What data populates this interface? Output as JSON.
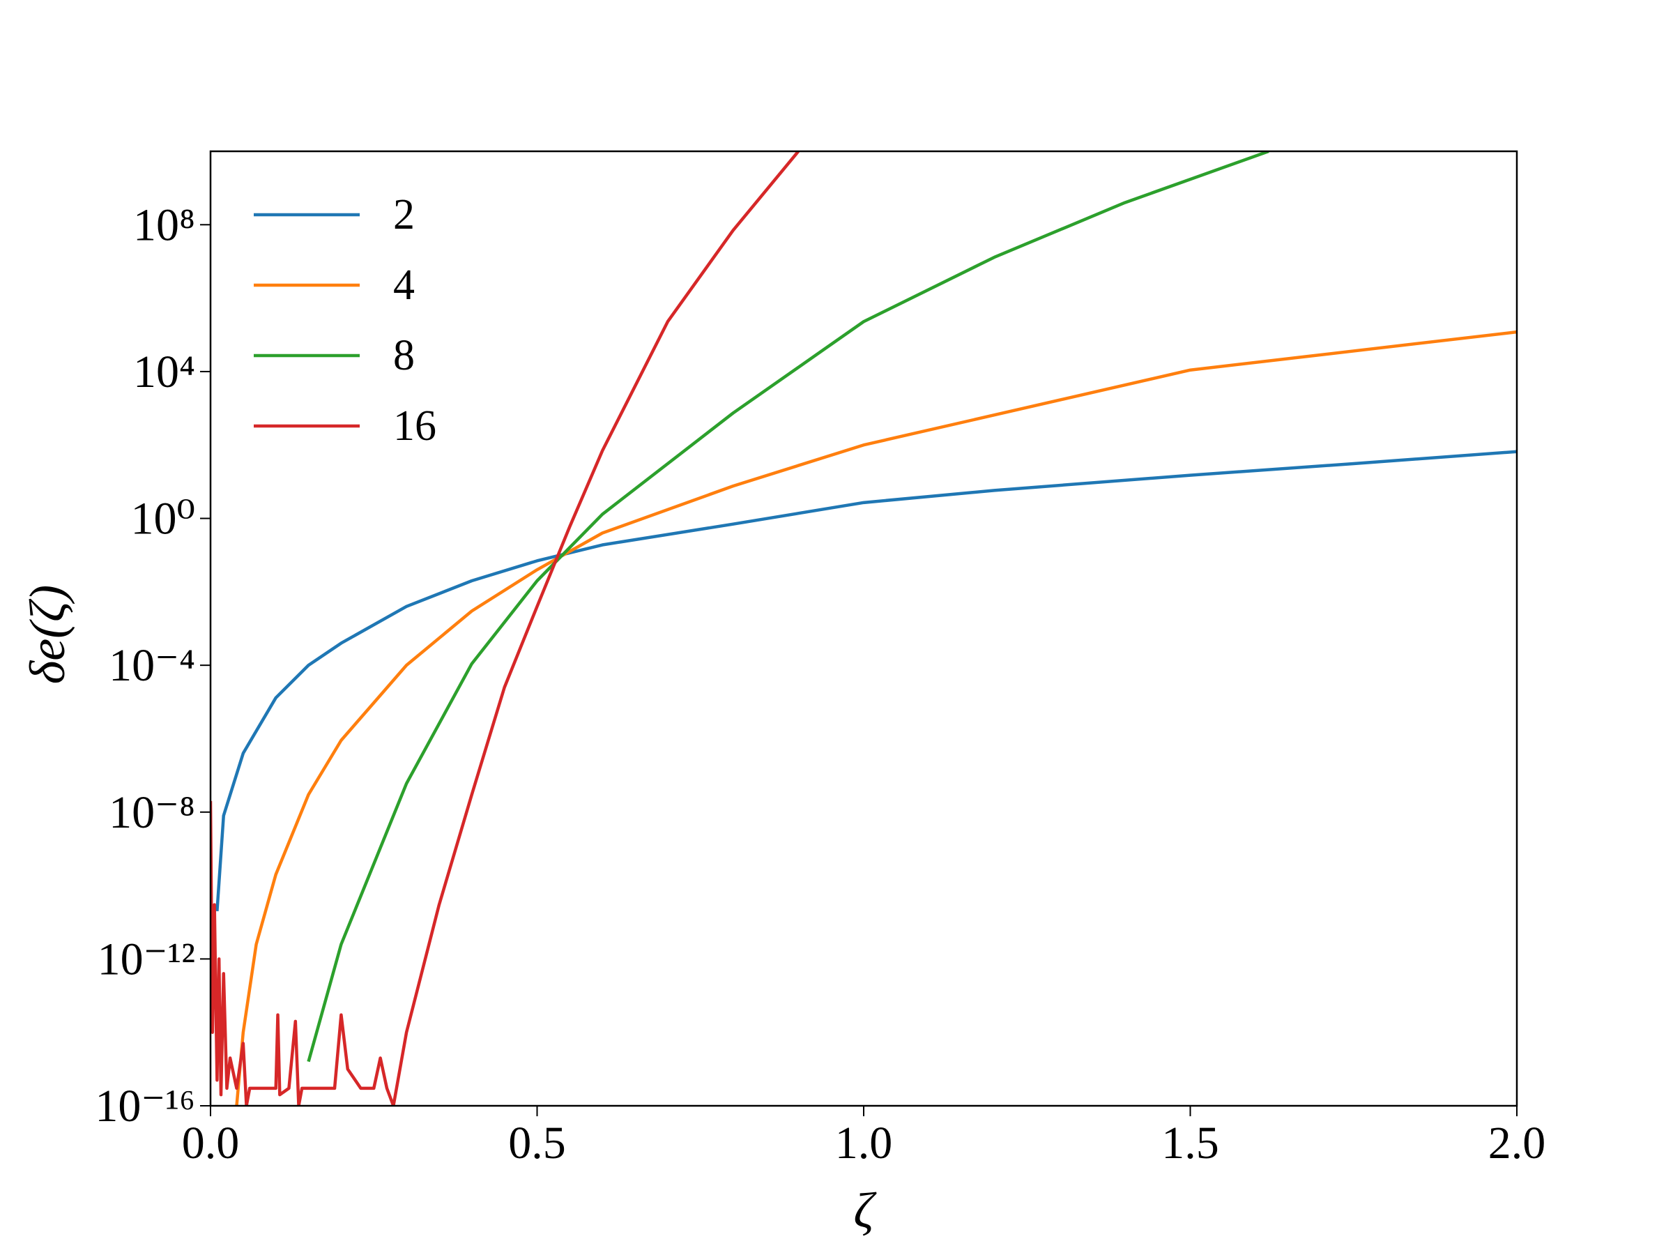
{
  "chart_data": {
    "type": "line",
    "x_label": "ζ",
    "y_label": "δe(ζ)",
    "log_y": true,
    "grid": false,
    "legend": "upper left",
    "xlim": [
      0,
      2
    ],
    "xticks": [
      {
        "value": 0,
        "label": "0.0"
      },
      0.5,
      {
        "value": 1,
        "label": "1.0"
      },
      1.5,
      {
        "value": 2,
        "label": "2.0"
      }
    ],
    "ylim": [
      1e-16,
      10000000000.0
    ],
    "yticks": [
      {
        "value": 1e-16,
        "label": "10⁻¹⁶"
      },
      {
        "value": 1e-12,
        "label": "10⁻¹²"
      },
      {
        "value": 1e-08,
        "label": "10⁻⁸"
      },
      {
        "value": 0.0001,
        "label": "10⁻⁴"
      },
      {
        "value": 1,
        "label": "10⁰"
      },
      {
        "value": 10000,
        "label": "10⁴"
      },
      {
        "value": 100000000,
        "label": "10⁸"
      }
    ],
    "series": [
      {
        "name": "2",
        "color": "#1f77b4",
        "x": [
          0.01,
          0.02,
          0.05,
          0.1,
          0.15,
          0.2,
          0.3,
          0.4,
          0.5,
          0.6,
          0.8,
          1.0,
          1.2,
          1.5,
          1.75,
          2.0
        ],
        "values": [
          2e-11,
          8e-09,
          4e-07,
          1.3e-05,
          0.0001,
          0.0004,
          0.004,
          0.02,
          0.07,
          0.19,
          0.7,
          2.7,
          5.8,
          15,
          31,
          66
        ]
      },
      {
        "name": "4",
        "color": "#ff7f0e",
        "x": [
          0.04,
          0.05,
          0.07,
          0.1,
          0.15,
          0.2,
          0.3,
          0.4,
          0.5,
          0.6,
          0.8,
          1.0,
          1.5,
          2.0
        ],
        "values": [
          1e-16,
          1e-14,
          2.5e-12,
          2e-10,
          3e-08,
          9e-07,
          0.0001,
          0.003,
          0.04,
          0.4,
          7.6,
          100,
          11000,
          120000
        ]
      },
      {
        "name": "8",
        "color": "#2ca02c",
        "x": [
          0.15,
          0.2,
          0.3,
          0.4,
          0.5,
          0.6,
          0.8,
          1.0,
          1.2,
          1.4,
          1.62
        ],
        "values": [
          1.6e-15,
          2.5e-12,
          6e-08,
          0.00011,
          0.02,
          1.3,
          740,
          230000,
          13000000,
          400000000,
          10000000000
        ]
      },
      {
        "name": "16",
        "color": "#d62728",
        "x": [
          0,
          0.003,
          0.006,
          0.01,
          0.013,
          0.016,
          0.02,
          0.025,
          0.03,
          0.04,
          0.05,
          0.055,
          0.06,
          0.08,
          0.1,
          0.103,
          0.106,
          0.12,
          0.13,
          0.135,
          0.14,
          0.16,
          0.19,
          0.2,
          0.21,
          0.23,
          0.25,
          0.26,
          0.27,
          0.28,
          0.3,
          0.35,
          0.4,
          0.45,
          0.5,
          0.55,
          0.6,
          0.7,
          0.8,
          0.9
        ],
        "values": [
          2e-08,
          1e-14,
          3e-11,
          5e-16,
          1e-12,
          2e-16,
          4e-13,
          3e-16,
          2e-15,
          3e-16,
          5e-15,
          1e-16,
          3e-16,
          3e-16,
          3e-16,
          3e-14,
          2e-16,
          3e-16,
          2e-14,
          1e-16,
          3e-16,
          3e-16,
          3e-16,
          3e-14,
          1e-15,
          3e-16,
          3e-16,
          2e-15,
          3e-16,
          1e-16,
          1e-14,
          3e-11,
          3e-08,
          2.5e-05,
          0.004,
          0.6,
          70,
          230000,
          70000000,
          10000000000
        ]
      }
    ]
  }
}
